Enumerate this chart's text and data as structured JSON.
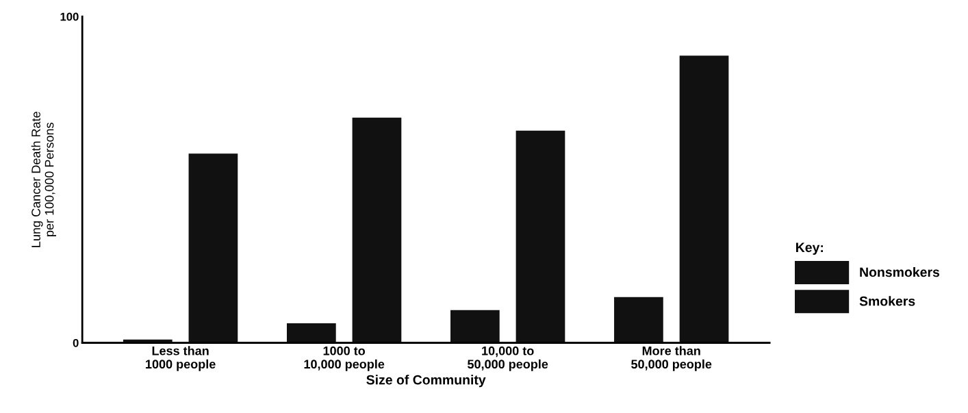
{
  "chart_data": {
    "type": "bar",
    "xlabel": "Size of Community",
    "ylabel": "Lung Cancer Death Rate\nper 100,000 Persons",
    "legend_title": "Key:",
    "categories": [
      "Less than\n1000 people",
      "1000 to\n10,000 people",
      "10,000 to\n50,000 people",
      "More than\n50,000 people"
    ],
    "series": [
      {
        "name": "Nonsmokers",
        "color": "#111111",
        "values": [
          1,
          6,
          10,
          14
        ]
      },
      {
        "name": "Smokers",
        "color": "#111111",
        "values": [
          58,
          69,
          65,
          88
        ]
      }
    ],
    "ylim": [
      0,
      100
    ],
    "yticks": [
      0,
      100
    ],
    "grid": false,
    "legend": "right"
  }
}
